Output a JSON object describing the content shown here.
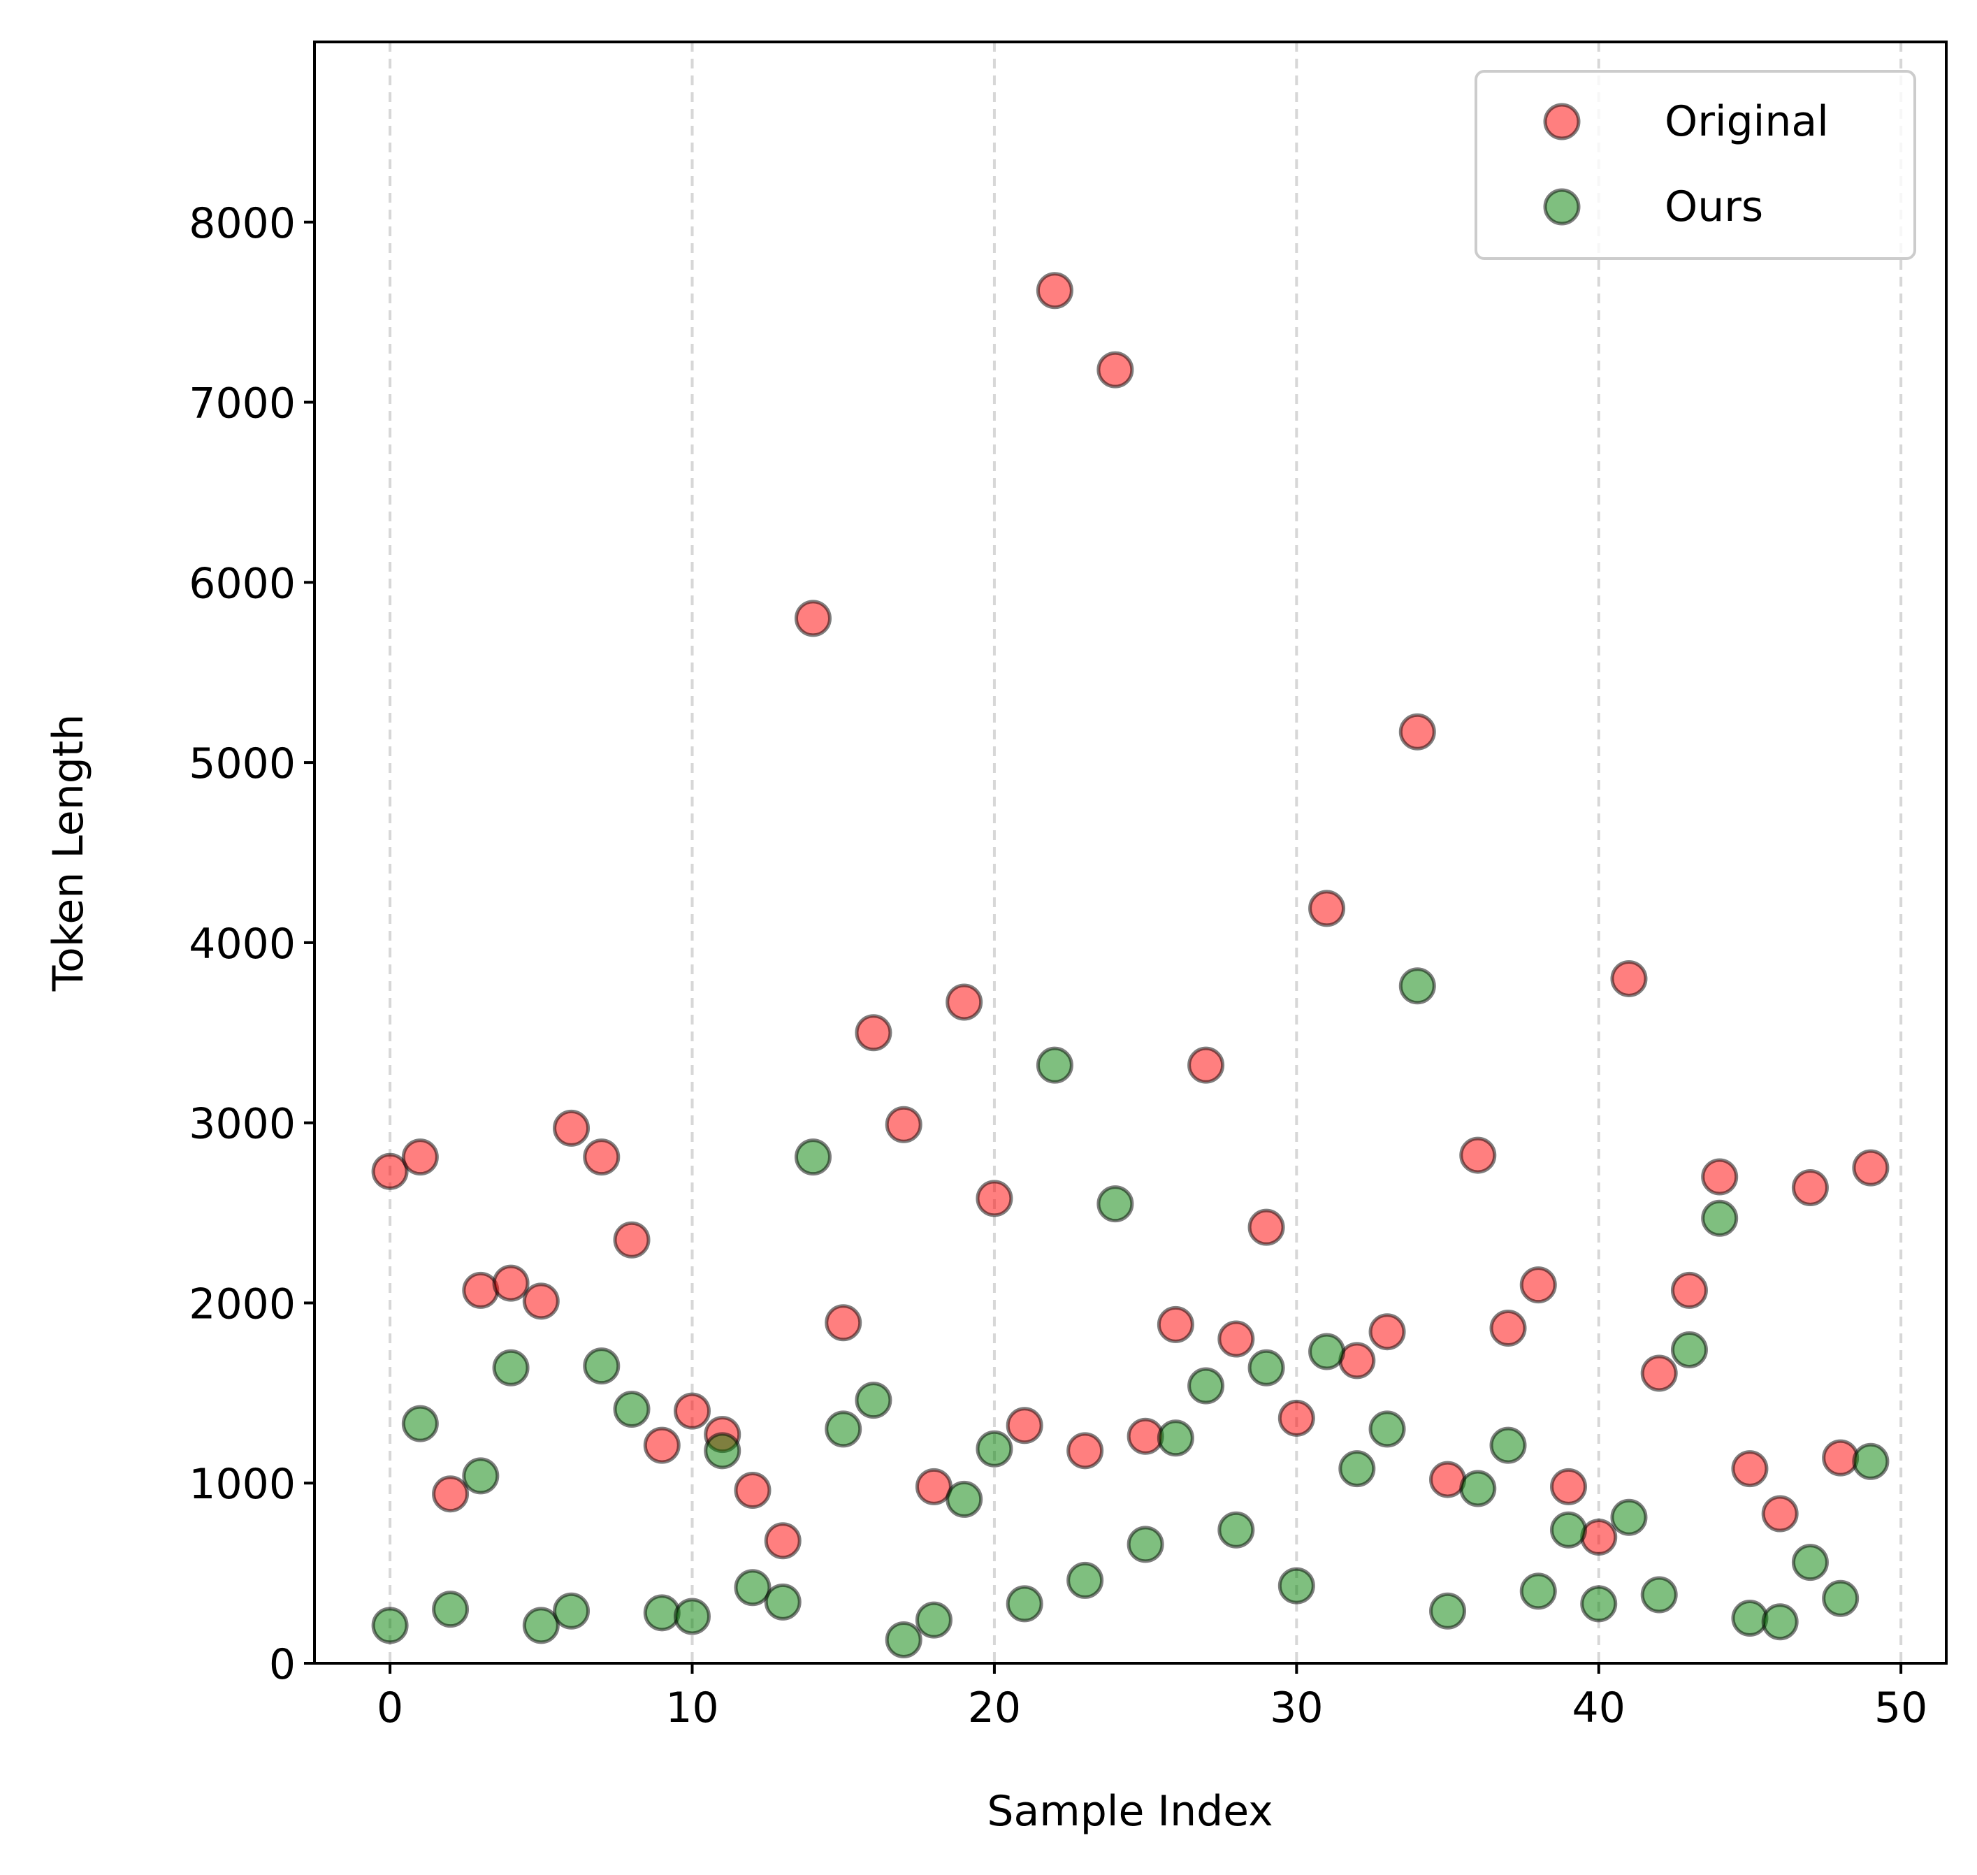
{
  "chart_data": {
    "type": "scatter",
    "title": "",
    "xlabel": "Sample Index",
    "ylabel": "Token Length",
    "xlim": [
      -2.5,
      51.5
    ],
    "ylim": [
      0,
      9000
    ],
    "xticks": [
      0,
      10,
      20,
      30,
      40,
      50
    ],
    "yticks": [
      0,
      1000,
      2000,
      3000,
      4000,
      5000,
      6000,
      7000,
      8000
    ],
    "x_grid": true,
    "y_grid": false,
    "grid_style": "dashed",
    "legend_position": "top-right",
    "series": [
      {
        "name": "Original",
        "color": "#ff0000",
        "x": [
          0,
          1,
          2,
          3,
          4,
          5,
          6,
          7,
          8,
          9,
          10,
          11,
          12,
          13,
          14,
          15,
          16,
          17,
          18,
          19,
          20,
          21,
          22,
          23,
          24,
          25,
          26,
          27,
          28,
          29,
          30,
          31,
          32,
          33,
          34,
          35,
          36,
          37,
          38,
          39,
          40,
          41,
          42,
          43,
          44,
          45,
          46,
          47,
          48,
          49
        ],
        "y": [
          2730,
          2810,
          940,
          2070,
          2110,
          2010,
          2970,
          2810,
          2350,
          1210,
          1400,
          1270,
          960,
          680,
          5800,
          1890,
          3500,
          2990,
          980,
          3670,
          2580,
          1320,
          7620,
          1180,
          7180,
          1260,
          1880,
          3320,
          1800,
          2420,
          1360,
          4190,
          1680,
          1840,
          5170,
          1020,
          2820,
          1860,
          2100,
          980,
          700,
          3800,
          1610,
          2070,
          2700,
          1080,
          830,
          2640,
          1140,
          2750
        ]
      },
      {
        "name": "Ours",
        "color": "#008000",
        "x": [
          0,
          1,
          2,
          3,
          4,
          5,
          6,
          7,
          8,
          9,
          10,
          11,
          12,
          13,
          14,
          15,
          16,
          17,
          18,
          19,
          20,
          21,
          22,
          23,
          24,
          25,
          26,
          27,
          28,
          29,
          30,
          31,
          32,
          33,
          34,
          35,
          36,
          37,
          38,
          39,
          40,
          41,
          42,
          43,
          44,
          45,
          46,
          47,
          48,
          49
        ],
        "y": [
          210,
          1330,
          300,
          1040,
          1640,
          210,
          290,
          1650,
          1410,
          280,
          260,
          1180,
          420,
          340,
          2810,
          1300,
          1460,
          130,
          240,
          910,
          1190,
          330,
          3320,
          460,
          2550,
          660,
          1250,
          1540,
          740,
          1640,
          430,
          1730,
          1080,
          1300,
          3760,
          290,
          970,
          1210,
          400,
          740,
          330,
          810,
          380,
          1740,
          2470,
          250,
          230,
          560,
          360,
          1120
        ]
      }
    ]
  }
}
